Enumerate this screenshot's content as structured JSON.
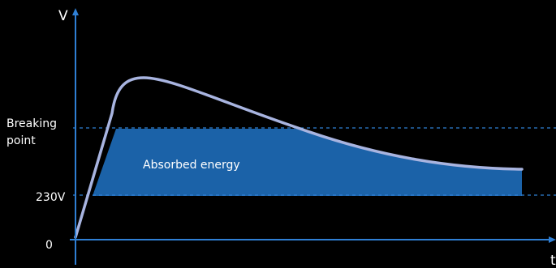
{
  "labels": {
    "y_axis": "V",
    "x_axis": "t",
    "breaking_line1": "Breaking",
    "breaking_line2": "point",
    "voltage_230": "230V",
    "origin": "0",
    "area": "Absorbed energy"
  },
  "colors": {
    "background": "#000000",
    "axis": "#2f7fd4",
    "absorbed_fill": "#1b62a8",
    "curve": "#a8b4e0",
    "text": "#ffffff"
  }
}
